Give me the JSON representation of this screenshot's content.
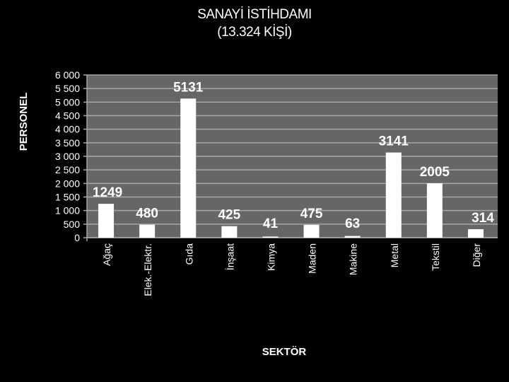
{
  "chart_data": {
    "type": "bar",
    "title": "SANAYİ İSTİHDAMI",
    "subtitle": "(13.324 KİŞİ)",
    "xlabel": "SEKTÖR",
    "ylabel": "PERSONEL",
    "categories": [
      "Ağaç",
      "Elek.-Elektr.",
      "Gıda",
      "İnşaat",
      "Kimya",
      "Maden",
      "Makine",
      "Metal",
      "Tekstil",
      "Diğer"
    ],
    "values": [
      1249,
      480,
      5131,
      425,
      41,
      475,
      63,
      3141,
      2005,
      314
    ],
    "data_labels": [
      "1249",
      "480",
      "5131",
      "425",
      "41",
      "475",
      "63",
      "3141",
      "2005",
      "314"
    ],
    "ylim": [
      0,
      6000
    ],
    "yticks": [
      0,
      500,
      1000,
      1500,
      2000,
      2500,
      3000,
      3500,
      4000,
      4500,
      5000,
      5500,
      6000
    ],
    "ytick_labels": [
      "0",
      "500",
      "1 000",
      "1 500",
      "2 000",
      "2 500",
      "3 000",
      "3 500",
      "4 000",
      "4 500",
      "5 000",
      "5 500",
      "6 000"
    ],
    "grid": true,
    "legend": "none"
  },
  "colors": {
    "background": "#000000",
    "plot_area": "#666666",
    "bar": "#ffffff",
    "gridline": "#a6a6a6",
    "text": "#ffffff"
  }
}
